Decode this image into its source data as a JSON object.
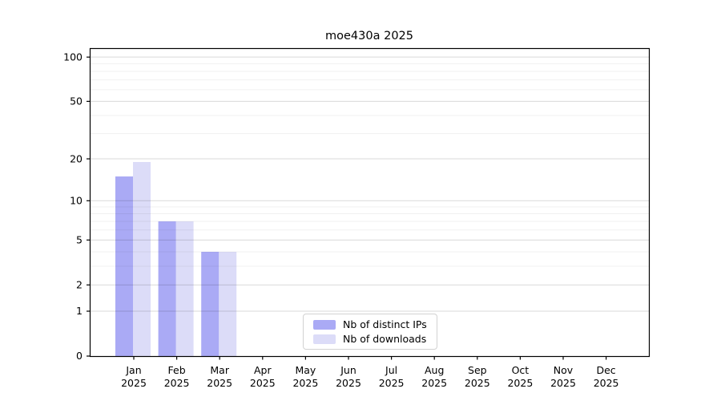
{
  "chart_data": {
    "type": "bar",
    "title": "moe430a 2025",
    "categories": [
      "Jan",
      "Feb",
      "Mar",
      "Apr",
      "May",
      "Jun",
      "Jul",
      "Aug",
      "Sep",
      "Oct",
      "Nov",
      "Dec"
    ],
    "year": "2025",
    "series": [
      {
        "name": "Nb of distinct IPs",
        "color": "#aaaaf5",
        "values": [
          15,
          7,
          4,
          0,
          0,
          0,
          0,
          0,
          0,
          0,
          0,
          0
        ]
      },
      {
        "name": "Nb of downloads",
        "color": "#dcdcf8",
        "values": [
          19,
          7,
          4,
          0,
          0,
          0,
          0,
          0,
          0,
          0,
          0,
          0
        ]
      }
    ],
    "y_ticks": [
      0,
      1,
      2,
      5,
      10,
      20,
      50,
      100
    ],
    "y_minor_gridlines": [
      3,
      4,
      6,
      7,
      8,
      9,
      30,
      40,
      60,
      70,
      80,
      90
    ],
    "scale": "log10(1+x)",
    "ylim": [
      0,
      115
    ],
    "xlabel": "",
    "ylabel": "",
    "grid": "on",
    "legend_position": "bottom-center",
    "colors": {
      "axis": "#000000",
      "major_grid": "rgba(0,0,0,0.15)",
      "minor_grid": "rgba(0,0,0,0.06)"
    }
  }
}
